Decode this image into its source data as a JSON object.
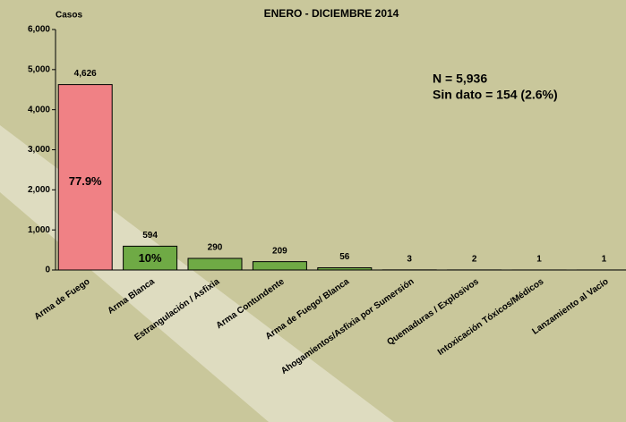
{
  "chart_data": {
    "type": "bar",
    "title": "ENERO - DICIEMBRE 2014",
    "y_label": "Casos",
    "categories": [
      "Arma de Fuego",
      "Arma Blanca",
      "Estrangulación / Asfixia",
      "Arma Contundente",
      "Arma de Fuego/ Blanca",
      "Ahogamientos/Asfixia por Sumersión",
      "Quemaduras / Explosivos",
      "Intoxicación Tóxicos/Médicos",
      "Lanzamiento al Vacío"
    ],
    "values": [
      4626,
      594,
      290,
      209,
      56,
      3,
      2,
      1,
      1
    ],
    "value_labels": [
      "4,626",
      "594",
      "290",
      "209",
      "56",
      "3",
      "2",
      "1",
      "1"
    ],
    "share_labels": [
      "77.9%",
      "10%",
      null,
      null,
      null,
      null,
      null,
      null,
      null
    ],
    "colors": [
      "#f08185",
      "#6faa45",
      "#6faa45",
      "#6faa45",
      "#6faa45",
      "#6faa45",
      "#6faa45",
      "#6faa45",
      "#6faa45"
    ],
    "ylim": [
      0,
      6000
    ],
    "yticks": [
      0,
      {
        "value": 1000,
        "label": "1,000"
      },
      {
        "value": 2000,
        "label": "2,000"
      },
      {
        "value": 3000,
        "label": "3,000"
      },
      {
        "value": 4000,
        "label": "4,000"
      },
      {
        "value": 5000,
        "label": "5,000"
      },
      {
        "value": 6000,
        "label": "6,000"
      }
    ],
    "annotations": [
      "N = 5,936",
      "Sin dato = 154 (2.6%)"
    ]
  }
}
